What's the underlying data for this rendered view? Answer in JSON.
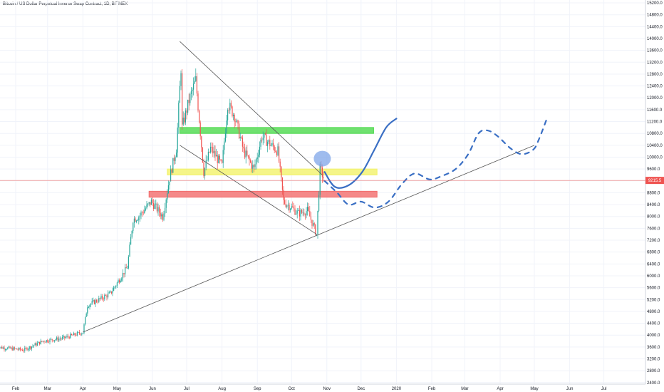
{
  "title": "Bitcoin / US Dollar Perpetual Inverse Swap Contract, 1D, BITMEX",
  "colors": {
    "up": "#26a69a",
    "down": "#ef5350",
    "grid": "#f0f3fa",
    "projection": "#3a6fc4",
    "green_zone": "#4cd94c",
    "yellow_zone": "#f2f26a",
    "red_zone": "#f26b6b",
    "price_line": "#ef5350"
  },
  "chart_data": {
    "type": "candlestick",
    "x_tick_labels": [
      "Feb",
      "Mar",
      "Apr",
      "May",
      "Jun",
      "Jul",
      "Aug",
      "Sep",
      "Oct",
      "Nov",
      "Dec",
      "2020",
      "Feb",
      "Mar",
      "Apr",
      "May",
      "Jun",
      "Jul"
    ],
    "y_tick_labels": [
      "2400.0",
      "2800.0",
      "3200.0",
      "3600.0",
      "4000.0",
      "4400.0",
      "4800.0",
      "5200.0",
      "5600.0",
      "6000.0",
      "6400.0",
      "6800.0",
      "7200.0",
      "7600.0",
      "8000.0",
      "8400.0",
      "8800.0",
      "9200.0",
      "9600.0",
      "10000.0",
      "10400.0",
      "10800.0",
      "11200.0",
      "11600.0",
      "12000.0",
      "12400.0",
      "12800.0",
      "13200.0",
      "13600.0",
      "14000.0",
      "14400.0",
      "14800.0",
      "15200.0"
    ],
    "y_range": [
      2200,
      15300
    ],
    "current_price": {
      "value": 9215.5,
      "label": "9215.5"
    },
    "price_path": [
      [
        "2019-01-15",
        3600
      ],
      [
        "2019-02-08",
        3500
      ],
      [
        "2019-02-25",
        3800
      ],
      [
        "2019-03-15",
        3900
      ],
      [
        "2019-04-01",
        4100
      ],
      [
        "2019-04-05",
        5000
      ],
      [
        "2019-04-25",
        5400
      ],
      [
        "2019-05-10",
        6300
      ],
      [
        "2019-05-15",
        7900
      ],
      [
        "2019-05-20",
        8000
      ],
      [
        "2019-05-31",
        8500
      ],
      [
        "2019-06-10",
        8000
      ],
      [
        "2019-06-16",
        9300
      ],
      [
        "2019-06-22",
        10300
      ],
      [
        "2019-06-26",
        13000
      ],
      [
        "2019-06-27",
        11000
      ],
      [
        "2019-07-03",
        11900
      ],
      [
        "2019-07-09",
        12600
      ],
      [
        "2019-07-16",
        9500
      ],
      [
        "2019-07-22",
        10300
      ],
      [
        "2019-08-01",
        9700
      ],
      [
        "2019-08-06",
        11800
      ],
      [
        "2019-08-12",
        11400
      ],
      [
        "2019-08-20",
        10200
      ],
      [
        "2019-08-29",
        9600
      ],
      [
        "2019-09-05",
        10700
      ],
      [
        "2019-09-19",
        10200
      ],
      [
        "2019-09-24",
        8500
      ],
      [
        "2019-10-01",
        8300
      ],
      [
        "2019-10-07",
        8100
      ],
      [
        "2019-10-15",
        8200
      ],
      [
        "2019-10-23",
        7400
      ],
      [
        "2019-10-26",
        9600
      ],
      [
        "2019-10-30",
        9215
      ]
    ],
    "annotations": {
      "zones": [
        {
          "name": "green",
          "from": "2019-06-25",
          "to": "2019-12-12",
          "top": 11000,
          "bottom": 10800
        },
        {
          "name": "yellow",
          "from": "2019-06-14",
          "to": "2019-12-15",
          "top": 9600,
          "bottom": 9400
        },
        {
          "name": "red",
          "from": "2019-05-29",
          "to": "2019-12-15",
          "top": 8850,
          "bottom": 8650
        }
      ],
      "trendlines": [
        {
          "from": [
            "2019-04-01",
            4100
          ],
          "to": [
            "2020-05-01",
            10400
          ]
        },
        {
          "from": [
            "2019-06-25",
            13900
          ],
          "to": [
            "2019-10-28",
            9400
          ]
        },
        {
          "from": [
            "2019-06-25",
            10400
          ],
          "to": [
            "2019-10-23",
            7400
          ]
        }
      ],
      "circle": {
        "date": "2019-10-28",
        "value": 9950
      },
      "projection_solid": [
        [
          "2019-10-30",
          9500
        ],
        [
          "2019-11-08",
          9000
        ],
        [
          "2019-11-20",
          9050
        ],
        [
          "2019-12-02",
          9500
        ],
        [
          "2019-12-12",
          10200
        ],
        [
          "2019-12-23",
          11000
        ],
        [
          "2020-01-01",
          11300
        ]
      ],
      "projection_dashed": [
        [
          "2019-10-30",
          9200
        ],
        [
          "2019-11-10",
          8800
        ],
        [
          "2019-11-20",
          8400
        ],
        [
          "2019-12-01",
          8500
        ],
        [
          "2019-12-13",
          8300
        ],
        [
          "2019-12-25",
          8500
        ],
        [
          "2020-01-06",
          9100
        ],
        [
          "2020-01-17",
          9450
        ],
        [
          "2020-01-30",
          9250
        ],
        [
          "2020-02-09",
          9350
        ],
        [
          "2020-02-22",
          9600
        ],
        [
          "2020-03-04",
          10100
        ],
        [
          "2020-03-13",
          10800
        ],
        [
          "2020-03-21",
          10900
        ],
        [
          "2020-03-30",
          10700
        ],
        [
          "2020-04-10",
          10300
        ],
        [
          "2020-04-20",
          10100
        ],
        [
          "2020-04-30",
          10250
        ],
        [
          "2020-05-05",
          10600
        ],
        [
          "2020-05-12",
          11300
        ]
      ]
    }
  }
}
